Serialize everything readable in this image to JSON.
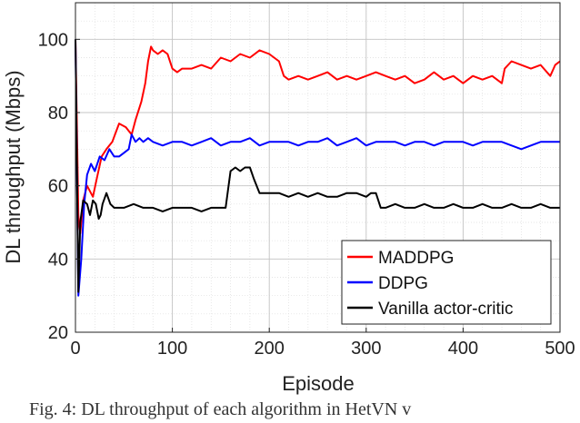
{
  "chart_data": {
    "type": "line",
    "title": "",
    "xlabel": "Episode",
    "ylabel": "DL throughput (Mbps)",
    "xlim": [
      0,
      500
    ],
    "ylim": [
      20,
      110
    ],
    "xticks": [
      0,
      100,
      200,
      300,
      400,
      500
    ],
    "yticks": [
      20,
      40,
      60,
      80,
      100
    ],
    "grid": true,
    "legend_position": "bottom-right",
    "series": [
      {
        "name": "MADDPG",
        "color": "#ff0000",
        "x": [
          0,
          3,
          5,
          8,
          12,
          18,
          22,
          27,
          32,
          38,
          45,
          52,
          58,
          62,
          68,
          72,
          75,
          78,
          80,
          85,
          90,
          95,
          100,
          105,
          110,
          120,
          130,
          140,
          150,
          160,
          170,
          180,
          190,
          200,
          210,
          215,
          220,
          230,
          240,
          250,
          260,
          270,
          280,
          290,
          300,
          310,
          320,
          330,
          340,
          350,
          360,
          370,
          380,
          390,
          400,
          410,
          420,
          430,
          440,
          443,
          450,
          460,
          470,
          480,
          490,
          495,
          500
        ],
        "y": [
          100,
          52,
          47,
          56,
          60,
          57,
          62,
          68,
          70,
          72,
          77,
          76,
          74,
          78,
          83,
          88,
          94,
          98,
          97,
          96,
          97,
          96,
          92,
          91,
          92,
          92,
          93,
          92,
          95,
          94,
          96,
          95,
          97,
          96,
          94,
          90,
          89,
          90,
          89,
          90,
          91,
          89,
          90,
          89,
          90,
          91,
          90,
          89,
          90,
          88,
          89,
          91,
          89,
          90,
          88,
          90,
          89,
          90,
          88,
          92,
          94,
          93,
          92,
          93,
          90,
          93,
          94
        ]
      },
      {
        "name": "DDPG",
        "color": "#0000ff",
        "x": [
          0,
          3,
          6,
          9,
          12,
          16,
          20,
          25,
          30,
          35,
          40,
          45,
          50,
          55,
          58,
          62,
          66,
          70,
          75,
          80,
          90,
          100,
          110,
          120,
          130,
          140,
          150,
          160,
          170,
          180,
          190,
          200,
          210,
          220,
          230,
          240,
          250,
          260,
          270,
          280,
          290,
          300,
          310,
          320,
          330,
          340,
          350,
          360,
          370,
          380,
          390,
          400,
          410,
          420,
          430,
          440,
          450,
          460,
          470,
          480,
          490,
          500
        ],
        "y": [
          100,
          30,
          40,
          55,
          63,
          66,
          64,
          68,
          67,
          70,
          68,
          68,
          69,
          70,
          74,
          72,
          73,
          72,
          73,
          72,
          71,
          72,
          72,
          71,
          72,
          73,
          71,
          72,
          72,
          73,
          71,
          72,
          72,
          72,
          71,
          72,
          72,
          73,
          71,
          72,
          73,
          71,
          72,
          72,
          72,
          71,
          72,
          72,
          71,
          72,
          72,
          72,
          71,
          72,
          72,
          72,
          71,
          70,
          71,
          72,
          72,
          72
        ]
      },
      {
        "name": "Vanilla actor-critic",
        "color": "#000000",
        "x": [
          0,
          3,
          5,
          8,
          12,
          15,
          18,
          21,
          24,
          26,
          28,
          32,
          36,
          40,
          50,
          60,
          70,
          80,
          90,
          100,
          110,
          120,
          130,
          140,
          150,
          155,
          160,
          165,
          170,
          175,
          180,
          184,
          190,
          200,
          210,
          220,
          230,
          240,
          250,
          260,
          270,
          280,
          290,
          300,
          305,
          310,
          315,
          320,
          330,
          340,
          350,
          360,
          370,
          380,
          390,
          400,
          410,
          420,
          430,
          440,
          450,
          460,
          470,
          480,
          490,
          500
        ],
        "y": [
          100,
          31,
          50,
          56,
          55,
          52,
          56,
          55,
          51,
          52,
          55,
          58,
          55,
          54,
          54,
          55,
          54,
          54,
          53,
          54,
          54,
          54,
          53,
          54,
          54,
          54,
          64,
          65,
          64,
          65,
          65,
          62,
          58,
          58,
          58,
          57,
          58,
          57,
          58,
          57,
          57,
          58,
          58,
          57,
          58,
          58,
          54,
          54,
          55,
          54,
          54,
          55,
          54,
          54,
          55,
          54,
          54,
          55,
          54,
          54,
          55,
          54,
          54,
          55,
          54,
          54
        ]
      }
    ]
  },
  "caption": "Fig. 4: DL throughput of each algorithm in HetVN v"
}
